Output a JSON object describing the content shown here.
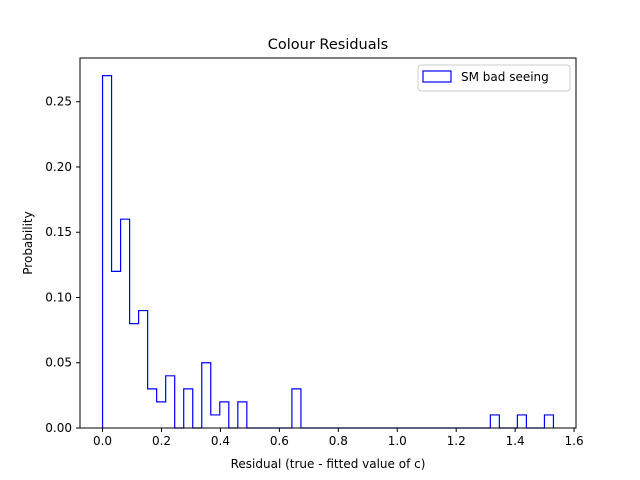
{
  "chart_data": {
    "type": "histogram-step",
    "title": "Colour Residuals",
    "xlabel": "Residual (true - fitted value of c)",
    "ylabel": "Probability",
    "xlim": [
      -0.0765,
      1.6065
    ],
    "ylim": [
      0,
      0.2835
    ],
    "xticks": [
      0.0,
      0.2,
      0.4,
      0.6,
      0.8,
      1.0,
      1.2,
      1.4,
      1.6
    ],
    "xtick_labels": [
      "0.0",
      "0.2",
      "0.4",
      "0.6",
      "0.8",
      "1.0",
      "1.2",
      "1.4",
      "1.6"
    ],
    "yticks": [
      0.0,
      0.05,
      0.1,
      0.15,
      0.2,
      0.25
    ],
    "ytick_labels": [
      "0.00",
      "0.05",
      "0.10",
      "0.15",
      "0.20",
      "0.25"
    ],
    "legend_position": "upper right",
    "series": [
      {
        "name": "SM bad seeing",
        "color": "#0000ff",
        "bin_width": 0.0306,
        "bin_start": 0.0,
        "values": [
          0.27,
          0.12,
          0.16,
          0.08,
          0.09,
          0.03,
          0.02,
          0.04,
          0.0,
          0.03,
          0.0,
          0.05,
          0.01,
          0.02,
          0.0,
          0.02,
          0.0,
          0.0,
          0.0,
          0.0,
          0.0,
          0.03,
          0.0,
          0.0,
          0.0,
          0.0,
          0.0,
          0.0,
          0.0,
          0.0,
          0.0,
          0.0,
          0.0,
          0.0,
          0.0,
          0.0,
          0.0,
          0.0,
          0.0,
          0.0,
          0.0,
          0.0,
          0.0,
          0.01,
          0.0,
          0.0,
          0.01,
          0.0,
          0.0,
          0.01
        ]
      }
    ]
  }
}
